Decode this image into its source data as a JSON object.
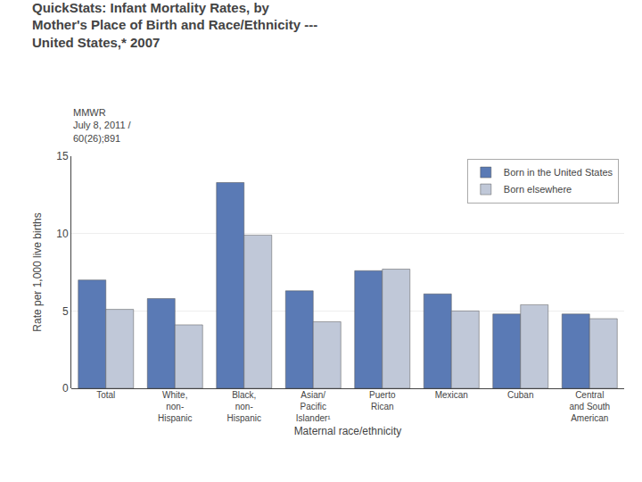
{
  "chart_data": {
    "type": "bar",
    "title": "QuickStats: Infant Mortality Rates, by\nMother's Place of Birth and Race/Ethnicity ---\nUnited States,* 2007",
    "subtitle": "MMWR\nJuly 8, 2011 /\n60(26);891",
    "categories": [
      "Total",
      "White,\nnon-\nHispanic",
      "Black,\nnon-\nHispanic",
      "Asian/\nPacific\nIslander¹",
      "Puerto\nRican",
      "Mexican",
      "Cuban",
      "Central\nand South\nAmerican"
    ],
    "series": [
      {
        "name": "Born in the United States",
        "color": "#5a7ab5",
        "values": [
          7.0,
          5.8,
          13.3,
          6.3,
          7.6,
          6.1,
          4.8,
          4.8
        ]
      },
      {
        "name": "Born elsewhere",
        "color": "#c0c8d8",
        "values": [
          5.1,
          4.1,
          9.9,
          4.3,
          7.7,
          5.0,
          5.4,
          4.5
        ]
      }
    ],
    "xlabel": "Maternal race/ethnicity",
    "ylabel": "Rate per 1,000 live births",
    "ylim": [
      0,
      15
    ],
    "yticks": [
      0,
      5,
      10,
      15
    ],
    "grid": true,
    "legend": "upper right"
  }
}
